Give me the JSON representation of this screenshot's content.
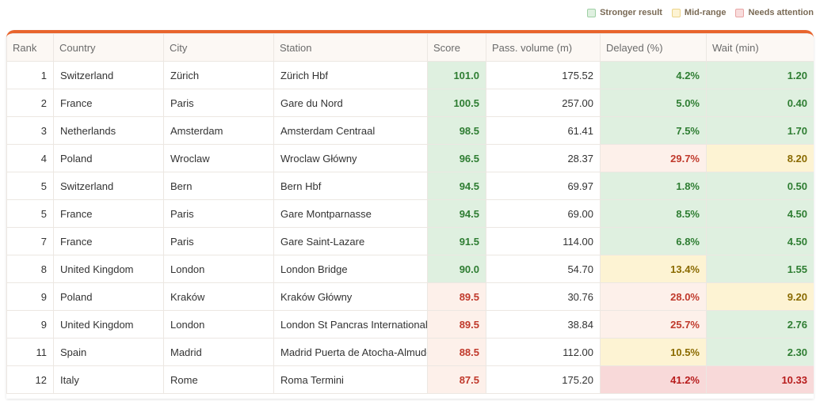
{
  "legend": [
    {
      "label": "Stronger result",
      "color": "#dff0e0",
      "border": "#9fd0a5"
    },
    {
      "label": "Mid-range",
      "color": "#fdf3d3",
      "border": "#ecd48a"
    },
    {
      "label": "Needs attention",
      "color": "#f8dcdc",
      "border": "#e8a5a5"
    }
  ],
  "table": {
    "columns": [
      "Rank",
      "Country",
      "City",
      "Station",
      "Score",
      "Pass. volume (m)",
      "Delayed (%)",
      "Wait (min)"
    ],
    "rows": [
      [
        "1",
        "Switzerland",
        "Zürich",
        "Zürich Hbf",
        "101.0",
        "175.52",
        "4.2%",
        "1.20"
      ],
      [
        "2",
        "France",
        "Paris",
        "Gare du Nord",
        "100.5",
        "257.00",
        "5.0%",
        "0.40"
      ],
      [
        "3",
        "Netherlands",
        "Amsterdam",
        "Amsterdam Centraal",
        "98.5",
        "61.41",
        "7.5%",
        "1.70"
      ],
      [
        "4",
        "Poland",
        "Wroclaw",
        "Wroclaw Główny",
        "96.5",
        "28.37",
        "29.7%",
        "8.20"
      ],
      [
        "5",
        "Switzerland",
        "Bern",
        "Bern Hbf",
        "94.5",
        "69.97",
        "1.8%",
        "0.50"
      ],
      [
        "5",
        "France",
        "Paris",
        "Gare Montparnasse",
        "94.5",
        "69.00",
        "8.5%",
        "4.50"
      ],
      [
        "7",
        "France",
        "Paris",
        "Gare Saint-Lazare",
        "91.5",
        "114.00",
        "6.8%",
        "4.50"
      ],
      [
        "8",
        "United Kingdom",
        "London",
        "London Bridge",
        "90.0",
        "54.70",
        "13.4%",
        "1.55"
      ],
      [
        "9",
        "Poland",
        "Kraków",
        "Kraków Główny",
        "89.5",
        "30.76",
        "28.0%",
        "9.20"
      ],
      [
        "9",
        "United Kingdom",
        "London",
        "London St Pancras International",
        "89.5",
        "38.84",
        "25.7%",
        "2.76"
      ],
      [
        "11",
        "Spain",
        "Madrid",
        "Madrid Puerta de Atocha-Almudena Grandes",
        "88.5",
        "112.00",
        "10.5%",
        "2.30"
      ],
      [
        "12",
        "Italy",
        "Rome",
        "Roma Termini",
        "87.5",
        "175.20",
        "41.2%",
        "10.33"
      ]
    ],
    "highlights": [
      [
        [
          "#dff0e0",
          "#2e7d32"
        ],
        [
          "#dff0e0",
          "#2e7d32"
        ],
        [
          "#dff0e0",
          "#2e7d32"
        ]
      ],
      [
        [
          "#dff0e0",
          "#2e7d32"
        ],
        [
          "#dff0e0",
          "#2e7d32"
        ],
        [
          "#dff0e0",
          "#2e7d32"
        ]
      ],
      [
        [
          "#dff0e0",
          "#2e7d32"
        ],
        [
          "#dff0e0",
          "#2e7d32"
        ],
        [
          "#dff0e0",
          "#2e7d32"
        ]
      ],
      [
        [
          "#dff0e0",
          "#2e7d32"
        ],
        [
          "#fdf0ea",
          "#c0392b"
        ],
        [
          "#fdf3d3",
          "#8a6a00"
        ]
      ],
      [
        [
          "#dff0e0",
          "#2e7d32"
        ],
        [
          "#dff0e0",
          "#2e7d32"
        ],
        [
          "#dff0e0",
          "#2e7d32"
        ]
      ],
      [
        [
          "#dff0e0",
          "#2e7d32"
        ],
        [
          "#dff0e0",
          "#2e7d32"
        ],
        [
          "#dff0e0",
          "#2e7d32"
        ]
      ],
      [
        [
          "#dff0e0",
          "#2e7d32"
        ],
        [
          "#dff0e0",
          "#2e7d32"
        ],
        [
          "#dff0e0",
          "#2e7d32"
        ]
      ],
      [
        [
          "#dff0e0",
          "#2e7d32"
        ],
        [
          "#fdf3d3",
          "#8a6a00"
        ],
        [
          "#dff0e0",
          "#2e7d32"
        ]
      ],
      [
        [
          "#fdf0ea",
          "#c0392b"
        ],
        [
          "#fdf0ea",
          "#c0392b"
        ],
        [
          "#fdf3d3",
          "#8a6a00"
        ]
      ],
      [
        [
          "#fdf0ea",
          "#c0392b"
        ],
        [
          "#fdf0ea",
          "#c0392b"
        ],
        [
          "#dff0e0",
          "#2e7d32"
        ]
      ],
      [
        [
          "#fdf0ea",
          "#c0392b"
        ],
        [
          "#fdf3d3",
          "#8a6a00"
        ],
        [
          "#dff0e0",
          "#2e7d32"
        ]
      ],
      [
        [
          "#fdf0ea",
          "#c0392b"
        ],
        [
          "#f8d9d9",
          "#b71c1c"
        ],
        [
          "#f8d9d9",
          "#b71c1c"
        ]
      ]
    ]
  }
}
